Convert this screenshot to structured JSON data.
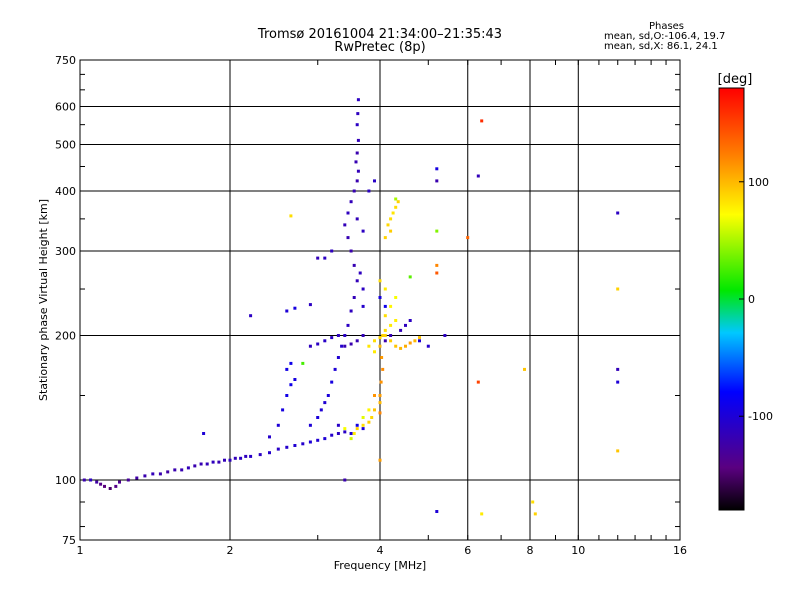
{
  "chart_data": {
    "type": "scatter",
    "title": "Tromsø 20161004 21:34:00–21:35:43",
    "subtitle": "RwPretec (8p)",
    "xlabel": "Frequency [MHz]",
    "ylabel": "Stationary phase Virtual Height [km]",
    "x_scale": "log",
    "y_scale": "log",
    "xlim": [
      1,
      16
    ],
    "ylim": [
      75,
      750
    ],
    "x_ticks": [
      1,
      2,
      4,
      6,
      8,
      10,
      16
    ],
    "x_tick_labels": [
      "1",
      "2",
      "4",
      "6",
      "8",
      "10",
      "16"
    ],
    "y_ticks": [
      75,
      100,
      200,
      300,
      400,
      500,
      600,
      750
    ],
    "y_tick_labels": [
      "75",
      "100",
      "200",
      "300",
      "400",
      "500",
      "600",
      "750"
    ],
    "grid": true,
    "colorbar": {
      "label": "[deg]",
      "range": [
        -180,
        180
      ],
      "ticks": [
        100,
        0,
        -100
      ],
      "tick_labels": [
        "100",
        "0",
        "-100"
      ]
    },
    "stats": {
      "heading": "Phases",
      "line1": "mean, sd,O:-106.4, 19.7",
      "line2": "mean, sd,X:  86.1, 24.1"
    },
    "series": [
      {
        "mode": "O",
        "points": [
          [
            1.02,
            100,
            -120
          ],
          [
            1.05,
            100,
            -110
          ],
          [
            1.08,
            99,
            -125
          ],
          [
            1.1,
            98,
            -140
          ],
          [
            1.12,
            97,
            -145
          ],
          [
            1.15,
            96,
            -150
          ],
          [
            1.18,
            97,
            -140
          ],
          [
            1.2,
            99,
            -135
          ],
          [
            1.25,
            100,
            -130
          ],
          [
            1.3,
            101,
            -125
          ],
          [
            1.35,
            102,
            -120
          ],
          [
            1.4,
            103,
            -115
          ],
          [
            1.45,
            103,
            -120
          ],
          [
            1.5,
            104,
            -125
          ],
          [
            1.55,
            105,
            -120
          ],
          [
            1.6,
            105,
            -118
          ],
          [
            1.65,
            106,
            -115
          ],
          [
            1.7,
            107,
            -120
          ],
          [
            1.75,
            108,
            -118
          ],
          [
            1.8,
            108,
            -115
          ],
          [
            1.85,
            109,
            -112
          ],
          [
            1.9,
            109,
            -118
          ],
          [
            1.95,
            110,
            -115
          ],
          [
            2.0,
            110,
            -112
          ],
          [
            2.05,
            111,
            -115
          ],
          [
            2.1,
            111,
            -110
          ],
          [
            2.15,
            112,
            -112
          ],
          [
            2.2,
            112,
            -108
          ],
          [
            2.3,
            113,
            -110
          ],
          [
            2.4,
            114,
            -105
          ],
          [
            2.5,
            116,
            -108
          ],
          [
            2.6,
            117,
            -105
          ],
          [
            2.7,
            118,
            -102
          ],
          [
            2.8,
            119,
            -105
          ],
          [
            2.9,
            120,
            -100
          ],
          [
            3.0,
            121,
            -102
          ],
          [
            3.1,
            122,
            -100
          ],
          [
            3.2,
            124,
            -105
          ],
          [
            3.3,
            125,
            -110
          ],
          [
            3.4,
            126,
            -108
          ],
          [
            1.77,
            125,
            -100
          ],
          [
            2.4,
            123,
            -105
          ],
          [
            2.5,
            130,
            -100
          ],
          [
            2.55,
            140,
            -95
          ],
          [
            2.6,
            150,
            -92
          ],
          [
            2.65,
            158,
            -90
          ],
          [
            2.7,
            162,
            -95
          ],
          [
            2.6,
            170,
            -92
          ],
          [
            2.65,
            175,
            -90
          ],
          [
            2.9,
            130,
            -100
          ],
          [
            3.0,
            135,
            -98
          ],
          [
            3.05,
            140,
            -100
          ],
          [
            3.1,
            145,
            -102
          ],
          [
            3.15,
            150,
            -98
          ],
          [
            3.2,
            160,
            -95
          ],
          [
            3.25,
            170,
            -100
          ],
          [
            3.3,
            180,
            -102
          ],
          [
            3.35,
            190,
            -105
          ],
          [
            3.4,
            200,
            -108
          ],
          [
            3.45,
            210,
            -110
          ],
          [
            3.5,
            225,
            -112
          ],
          [
            3.55,
            240,
            -115
          ],
          [
            3.6,
            260,
            -115
          ],
          [
            3.55,
            280,
            -118
          ],
          [
            3.5,
            300,
            -120
          ],
          [
            3.45,
            320,
            -118
          ],
          [
            3.4,
            340,
            -115
          ],
          [
            3.45,
            360,
            -112
          ],
          [
            3.5,
            380,
            -115
          ],
          [
            3.55,
            400,
            -118
          ],
          [
            3.6,
            420,
            -120
          ],
          [
            3.62,
            440,
            -115
          ],
          [
            3.58,
            460,
            -118
          ],
          [
            3.6,
            480,
            -120
          ],
          [
            3.62,
            510,
            -115
          ],
          [
            3.6,
            550,
            -110
          ],
          [
            3.61,
            580,
            -112
          ],
          [
            3.62,
            620,
            -110
          ],
          [
            3.3,
            130,
            -108
          ],
          [
            3.2,
            300,
            -112
          ],
          [
            3.1,
            290,
            -110
          ],
          [
            3.0,
            290,
            -115
          ],
          [
            2.9,
            190,
            -112
          ],
          [
            3.0,
            192,
            -110
          ],
          [
            3.1,
            195,
            -108
          ],
          [
            3.2,
            198,
            -110
          ],
          [
            3.3,
            200,
            -112
          ],
          [
            3.4,
            190,
            -118
          ],
          [
            3.5,
            192,
            -120
          ],
          [
            3.6,
            195,
            -118
          ],
          [
            3.7,
            200,
            -115
          ],
          [
            2.2,
            220,
            -110
          ],
          [
            2.6,
            225,
            -100
          ],
          [
            2.7,
            228,
            -95
          ],
          [
            2.9,
            232,
            -110
          ],
          [
            3.7,
            330,
            -110
          ],
          [
            3.6,
            350,
            -115
          ],
          [
            3.65,
            270,
            -112
          ],
          [
            3.7,
            250,
            -110
          ],
          [
            3.7,
            230,
            -105
          ],
          [
            4.1,
            195,
            -120
          ],
          [
            4.2,
            200,
            -118
          ],
          [
            4.4,
            205,
            -115
          ],
          [
            4.5,
            210,
            -112
          ],
          [
            4.6,
            215,
            -110
          ],
          [
            4.8,
            195,
            -100
          ],
          [
            5.0,
            190,
            -105
          ],
          [
            5.4,
            200,
            -110
          ],
          [
            3.5,
            125,
            -100
          ],
          [
            3.6,
            130,
            -95
          ],
          [
            3.7,
            128,
            -98
          ],
          [
            3.4,
            100,
            -120
          ],
          [
            3.8,
            400,
            -110
          ],
          [
            3.9,
            420,
            -108
          ],
          [
            4.1,
            230,
            -90
          ],
          [
            4.0,
            240,
            -95
          ],
          [
            5.2,
            86,
            -100
          ],
          [
            5.2,
            420,
            -120
          ],
          [
            5.2,
            445,
            -95
          ],
          [
            6.3,
            430,
            -115
          ],
          [
            12.0,
            360,
            -110
          ],
          [
            12.0,
            160,
            -100
          ],
          [
            12.0,
            170,
            -115
          ]
        ]
      },
      {
        "mode": "X",
        "points": [
          [
            3.55,
            125,
            80
          ],
          [
            3.6,
            128,
            90
          ],
          [
            3.7,
            130,
            85
          ],
          [
            3.8,
            132,
            92
          ],
          [
            3.85,
            135,
            88
          ],
          [
            3.9,
            140,
            95
          ],
          [
            4.0,
            145,
            100
          ],
          [
            4.0,
            150,
            110
          ],
          [
            4.02,
            160,
            115
          ],
          [
            4.05,
            170,
            118
          ],
          [
            4.03,
            180,
            112
          ],
          [
            4.0,
            190,
            100
          ],
          [
            4.05,
            200,
            90
          ],
          [
            4.1,
            205,
            85
          ],
          [
            4.2,
            210,
            80
          ],
          [
            4.3,
            215,
            78
          ],
          [
            4.1,
            220,
            85
          ],
          [
            4.2,
            230,
            75
          ],
          [
            4.3,
            240,
            70
          ],
          [
            4.1,
            250,
            80
          ],
          [
            4.0,
            260,
            85
          ],
          [
            4.1,
            320,
            90
          ],
          [
            4.15,
            340,
            88
          ],
          [
            4.2,
            350,
            85
          ],
          [
            4.25,
            360,
            82
          ],
          [
            4.3,
            370,
            86
          ],
          [
            4.35,
            380,
            90
          ],
          [
            4.2,
            330,
            92
          ],
          [
            3.9,
            185,
            80
          ],
          [
            3.8,
            190,
            82
          ],
          [
            3.9,
            195,
            85
          ],
          [
            4.0,
            198,
            88
          ],
          [
            4.1,
            200,
            90
          ],
          [
            4.2,
            195,
            92
          ],
          [
            4.3,
            190,
            95
          ],
          [
            4.4,
            188,
            100
          ],
          [
            4.5,
            190,
            105
          ],
          [
            4.6,
            193,
            110
          ],
          [
            4.7,
            195,
            100
          ],
          [
            4.8,
            198,
            95
          ],
          [
            3.4,
            128,
            70
          ],
          [
            3.5,
            122,
            60
          ],
          [
            3.7,
            135,
            65
          ],
          [
            3.8,
            140,
            75
          ],
          [
            3.9,
            150,
            115
          ],
          [
            4.0,
            138,
            120
          ],
          [
            4.0,
            110,
            110
          ],
          [
            5.2,
            270,
            140
          ],
          [
            5.2,
            280,
            120
          ],
          [
            6.0,
            320,
            135
          ],
          [
            6.3,
            160,
            150
          ],
          [
            6.4,
            85,
            80
          ],
          [
            6.4,
            560,
            160
          ],
          [
            7.8,
            170,
            95
          ],
          [
            8.1,
            90,
            85
          ],
          [
            8.2,
            85,
            90
          ],
          [
            12.0,
            115,
            95
          ],
          [
            12.0,
            250,
            90
          ],
          [
            2.65,
            355,
            85
          ],
          [
            2.8,
            175,
            25
          ],
          [
            4.6,
            265,
            30
          ],
          [
            5.2,
            330,
            40
          ],
          [
            4.3,
            385,
            50
          ]
        ]
      }
    ]
  }
}
